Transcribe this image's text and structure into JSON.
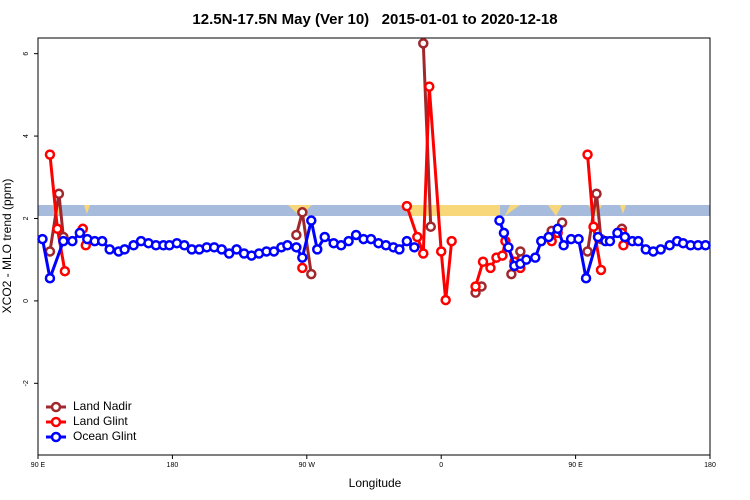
{
  "chart_data": {
    "type": "line",
    "title": "12.5N-17.5N May (Ver 10)   2015-01-01 to 2020-12-18",
    "x_label": "Longitude",
    "y_label": "XCO2 - MLO trend (ppm)",
    "xlim": [
      90,
      540
    ],
    "ylim": [
      -3.74,
      6.38
    ],
    "xticks": [
      {
        "value": 90,
        "label": "90 E"
      },
      180,
      {
        "value": 270,
        "label": "90 W"
      },
      {
        "value": 360,
        "label": "0"
      },
      {
        "value": 450,
        "label": "90 E"
      },
      {
        "value": 540,
        "label": "180"
      }
    ],
    "yticks": [
      -2,
      0,
      2,
      4,
      6
    ],
    "legend": "bottom-left",
    "series": [
      {
        "name": "Land Nadir",
        "color": "#a0282d",
        "x": [
          98,
          104,
          107,
          null,
          263,
          267,
          273,
          null,
          348,
          353,
          null,
          383,
          387,
          null,
          407,
          413,
          null,
          434,
          441,
          null,
          458,
          464,
          467,
          null,
          481
        ],
        "values": [
          1.2,
          2.6,
          1.55,
          null,
          1.6,
          2.15,
          0.65,
          null,
          6.25,
          1.8,
          null,
          0.2,
          0.35,
          null,
          0.65,
          1.2,
          null,
          1.7,
          1.9,
          null,
          1.2,
          2.6,
          1.5,
          null,
          1.75
        ]
      },
      {
        "name": "Land Glint",
        "color": "#ff0000",
        "x": [
          98,
          103,
          108,
          null,
          120,
          122,
          null,
          267,
          null,
          337,
          344,
          348,
          352,
          360,
          363,
          367,
          null,
          383,
          388,
          393,
          397,
          401,
          403,
          409,
          413,
          null,
          434,
          438,
          null,
          458,
          462,
          467,
          null,
          481,
          482
        ],
        "values": [
          3.55,
          1.75,
          0.72,
          null,
          1.75,
          1.35,
          null,
          0.8,
          null,
          2.3,
          1.55,
          1.15,
          5.2,
          1.2,
          0.02,
          1.45,
          null,
          0.35,
          0.95,
          0.8,
          1.05,
          1.1,
          1.45,
          0.95,
          0.8,
          null,
          1.45,
          1.65,
          null,
          3.55,
          1.8,
          0.75,
          null,
          1.65,
          1.35
        ]
      },
      {
        "name": "Ocean Glint",
        "color": "#0000ff",
        "x": [
          93,
          98,
          107,
          113,
          118,
          123,
          128,
          133,
          138,
          144,
          148,
          154,
          159,
          164,
          169,
          174,
          178,
          183,
          188,
          193,
          198,
          203,
          208,
          213,
          218,
          223,
          228,
          233,
          238,
          243,
          248,
          253,
          257,
          263,
          267,
          273,
          277,
          282,
          288,
          293,
          298,
          303,
          308,
          313,
          318,
          323,
          328,
          332,
          337,
          342,
          null,
          399,
          402,
          405,
          409,
          413,
          417,
          423,
          427,
          432,
          438,
          442,
          447,
          452,
          457,
          465,
          470,
          473,
          478,
          483,
          488,
          492,
          497,
          502,
          507,
          513,
          518,
          522,
          527,
          532,
          537
        ],
        "values": [
          1.5,
          0.55,
          1.45,
          1.45,
          1.65,
          1.5,
          1.45,
          1.45,
          1.25,
          1.2,
          1.25,
          1.35,
          1.45,
          1.4,
          1.35,
          1.35,
          1.35,
          1.4,
          1.35,
          1.25,
          1.25,
          1.3,
          1.3,
          1.25,
          1.15,
          1.25,
          1.15,
          1.1,
          1.15,
          1.2,
          1.2,
          1.3,
          1.35,
          1.3,
          1.05,
          1.95,
          1.25,
          1.55,
          1.4,
          1.35,
          1.45,
          1.6,
          1.5,
          1.5,
          1.4,
          1.35,
          1.3,
          1.25,
          1.45,
          1.3,
          null,
          1.95,
          1.65,
          1.3,
          0.85,
          0.9,
          1.0,
          1.05,
          1.45,
          1.55,
          1.75,
          1.35,
          1.5,
          1.5,
          0.55,
          1.55,
          1.45,
          1.45,
          1.65,
          1.55,
          1.45,
          1.45,
          1.25,
          1.2,
          1.25,
          1.35,
          1.45,
          1.4,
          1.35,
          1.35,
          1.35
        ]
      }
    ]
  }
}
